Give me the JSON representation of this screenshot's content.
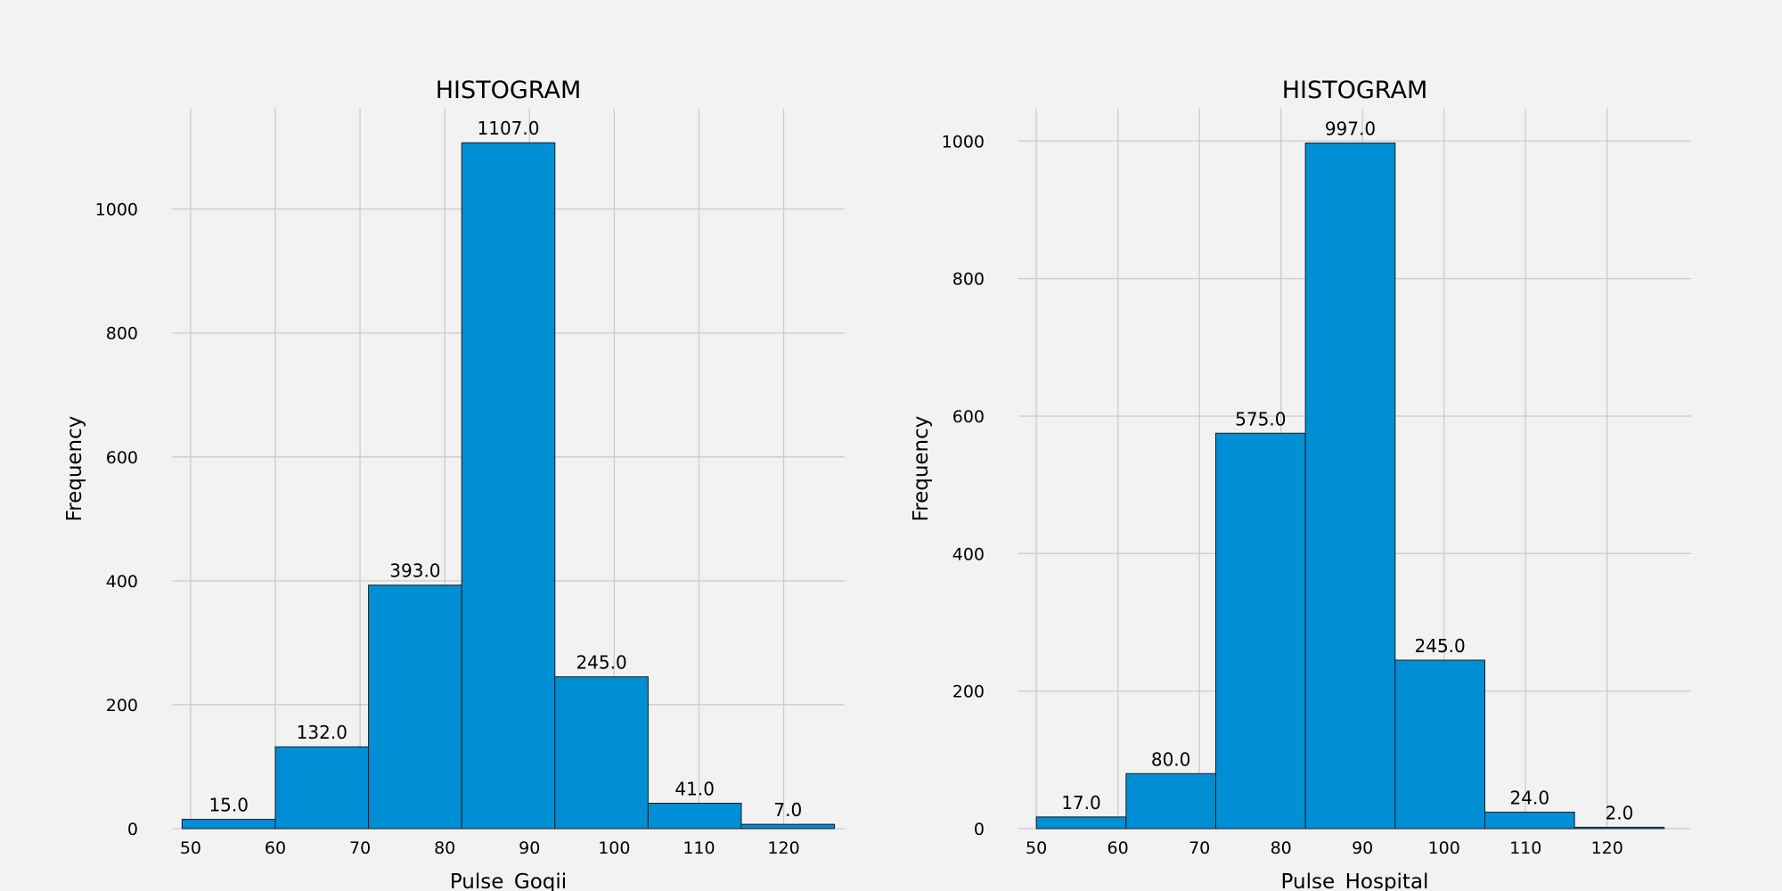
{
  "chart_data": [
    {
      "type": "bar",
      "title": "HISTOGRAM",
      "xlabel": "Pulse_Goqii",
      "ylabel": "Frequency",
      "bins": [
        [
          49,
          60
        ],
        [
          60,
          71
        ],
        [
          71,
          82
        ],
        [
          82,
          93
        ],
        [
          93,
          104
        ],
        [
          104,
          115
        ],
        [
          115,
          126
        ]
      ],
      "values": [
        15,
        132,
        393,
        1107,
        245,
        41,
        7
      ],
      "labels": [
        "15.0",
        "132.0",
        "393.0",
        "1107.0",
        "245.0",
        "41.0",
        "7.0"
      ],
      "xticks": [
        50,
        60,
        70,
        80,
        90,
        100,
        110,
        120
      ],
      "yticks": [
        0,
        200,
        400,
        600,
        800,
        1000
      ],
      "xlim": [
        47.8,
        127.2
      ],
      "ylim": [
        0,
        1162
      ],
      "grid": true,
      "bar_color": "#008fd5"
    },
    {
      "type": "bar",
      "title": "HISTOGRAM",
      "xlabel": "Pulse_Hospital",
      "ylabel": "Frequency",
      "bins": [
        [
          50,
          61
        ],
        [
          61,
          72
        ],
        [
          72,
          83
        ],
        [
          83,
          94
        ],
        [
          94,
          105
        ],
        [
          105,
          116
        ],
        [
          116,
          127
        ]
      ],
      "values": [
        17,
        80,
        575,
        997,
        245,
        24,
        2
      ],
      "labels": [
        "17.0",
        "80.0",
        "575.0",
        "997.0",
        "245.0",
        "24.0",
        "2.0"
      ],
      "xticks": [
        50,
        60,
        70,
        80,
        90,
        100,
        110,
        120
      ],
      "yticks": [
        0,
        200,
        400,
        600,
        800,
        1000
      ],
      "xlim": [
        47.8,
        130.3
      ],
      "ylim": [
        0,
        1047
      ],
      "grid": true,
      "bar_color": "#008fd5"
    }
  ]
}
